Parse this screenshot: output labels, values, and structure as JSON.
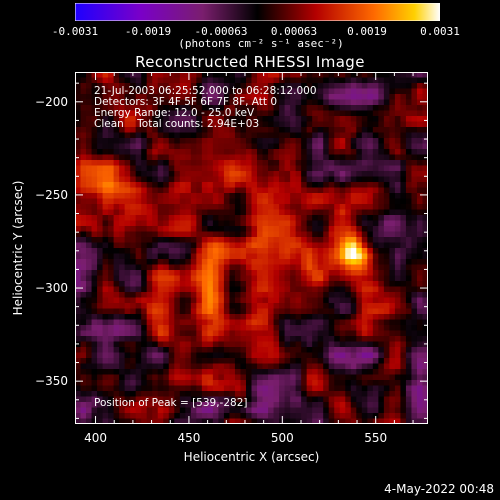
{
  "chart_data": {
    "type": "heatmap",
    "title": "Reconstructed RHESSI Image",
    "xlabel": "Heliocentric X (arcsec)",
    "ylabel": "Heliocentric Y (arcsec)",
    "xlim": [
      389,
      578
    ],
    "ylim": [
      -373,
      -184
    ],
    "x_ticks": [
      400,
      450,
      500,
      550
    ],
    "y_ticks": [
      -200,
      -250,
      -300,
      -350
    ],
    "colorbar": {
      "range": [
        -0.0031,
        0.0031
      ],
      "ticks": [
        "-0.0031",
        "-0.0019",
        "-0.00063",
        "0.00063",
        "0.0019",
        "0.0031"
      ],
      "units_label": "(photons cm⁻² s⁻¹ asec⁻²)",
      "colors": [
        "#1e00ff",
        "#7a00c8",
        "#7a1e6e",
        "#000000",
        "#b40000",
        "#ff6a00",
        "#ffd000",
        "#ffffff"
      ]
    },
    "annotations": [
      "21-Jul-2003 06:25:52.000 to 06:28:12.000",
      "Detectors: 3F 4F 5F 6F 7F 8F, Att 0",
      "Energy Range: 12.0 - 25.0 keV",
      "Clean    Total counts: 2.94E+03"
    ],
    "peak_label": "Position of Peak = [539,-282]",
    "peak": {
      "x": 539,
      "y": -282,
      "value": 0.0031
    },
    "features": [
      {
        "x": 539,
        "y": -282,
        "amplitude": 0.0031,
        "sigma": 7
      },
      {
        "x": 410,
        "y": -240,
        "amplitude": 0.0012,
        "sigma": 9
      },
      {
        "x": 500,
        "y": -270,
        "amplitude": 0.0009,
        "sigma": 30
      },
      {
        "x": 470,
        "y": -300,
        "amplitude": 0.0008,
        "sigma": 22
      },
      {
        "x": 440,
        "y": -330,
        "amplitude": 0.0006,
        "sigma": 14
      },
      {
        "x": 410,
        "y": -205,
        "amplitude": 0.0008,
        "sigma": 14
      }
    ]
  },
  "footer": "4-May-2022 00:48"
}
